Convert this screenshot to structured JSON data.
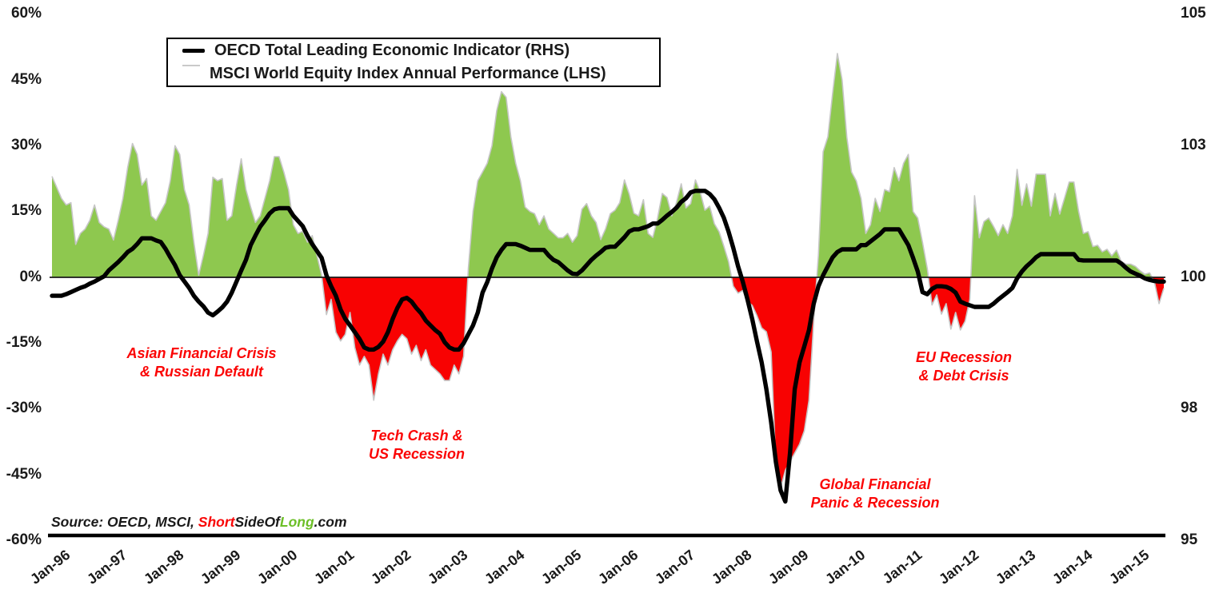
{
  "legend": {
    "items": [
      {
        "label": "OECD Total Leading Economic Indicator (RHS)",
        "swatch": "line",
        "color": "#000000"
      },
      {
        "label": "MSCI World Equity Index Annual Performance (LHS)",
        "swatch": "box",
        "color": "#8ec84f"
      }
    ]
  },
  "axes": {
    "left": {
      "labels": [
        "60%",
        "45%",
        "30%",
        "15%",
        "0%",
        "-15%",
        "-30%",
        "-45%",
        "-60%"
      ]
    },
    "right": {
      "labels": [
        "105",
        "103",
        "100",
        "98",
        "95"
      ]
    },
    "x": {
      "labels": [
        "Jan-96",
        "Jan-97",
        "Jan-98",
        "Jan-99",
        "Jan-00",
        "Jan-01",
        "Jan-02",
        "Jan-03",
        "Jan-04",
        "Jan-05",
        "Jan-06",
        "Jan-07",
        "Jan-08",
        "Jan-09",
        "Jan-10",
        "Jan-11",
        "Jan-12",
        "Jan-13",
        "Jan-14",
        "Jan-15"
      ]
    }
  },
  "annotations": [
    {
      "id": "asian-crisis",
      "line1": "Asian Financial Crisis",
      "line2": "& Russian Default"
    },
    {
      "id": "tech-crash",
      "line1": "Tech Crash &",
      "line2": "US Recession"
    },
    {
      "id": "gfc",
      "line1": "Global Financial",
      "line2": "Panic & Recession"
    },
    {
      "id": "eu-recession",
      "line1": "EU Recession",
      "line2": "& Debt Crisis"
    }
  ],
  "source": {
    "prefix": "Source: OECD, MSCI, ",
    "brand": [
      {
        "text": "Short",
        "color": "#f90505"
      },
      {
        "text": "SideOf",
        "color": "#1a1a1a"
      },
      {
        "text": "Long",
        "color": "#6cbf27"
      },
      {
        "text": ".com",
        "color": "#1a1a1a"
      }
    ]
  },
  "chart_data": {
    "type": "area+line",
    "frequency": "monthly",
    "x_start": "Jan-1996",
    "x_end": "Aug-2015",
    "left_axis_range": [
      -60,
      60
    ],
    "right_axis_range": [
      95,
      105
    ],
    "grid": false,
    "legend_position": "top-left",
    "colors": {
      "area_positive": "#8ec84f",
      "area_negative": "#f80202",
      "area_edge": "#c6c6c6",
      "line": "#000000"
    },
    "series": [
      {
        "name": "MSCI World Equity Index Annual Performance (LHS)",
        "axis": "left",
        "unit": "%",
        "type": "area",
        "values": [
          23,
          20.5,
          18,
          16.5,
          17,
          7.5,
          10,
          11,
          13,
          16.5,
          12.5,
          11.5,
          11,
          8.5,
          13,
          18,
          25,
          30.5,
          28,
          21,
          22.5,
          14,
          13,
          15,
          17,
          22,
          30,
          28,
          20,
          16.5,
          8,
          0.5,
          5,
          10,
          22.8,
          22,
          22.5,
          13,
          14,
          21,
          27,
          20,
          16,
          12.5,
          14,
          18,
          22,
          27.5,
          27.5,
          24,
          20,
          12,
          10,
          10.5,
          8,
          9.5,
          5,
          0.5,
          -8.5,
          -5,
          -12.5,
          -14.5,
          -13,
          -8,
          -16,
          -20,
          -18,
          -20,
          -28,
          -22,
          -17.5,
          -20,
          -16.5,
          -14.5,
          -13,
          -14,
          -17.5,
          -15.5,
          -19,
          -16.5,
          -20,
          -21,
          -22,
          -23.5,
          -23.5,
          -20,
          -22,
          -18,
          2,
          15,
          22,
          24,
          26,
          30,
          38,
          42.3,
          41,
          32,
          26,
          22,
          16,
          15,
          14.5,
          12,
          14,
          11,
          10,
          9,
          9,
          10,
          8,
          9.5,
          15.5,
          16.8,
          14,
          12.5,
          8.6,
          11,
          14.5,
          15.3,
          17,
          22.2,
          19,
          14.6,
          14,
          17.7,
          10,
          9.1,
          13.5,
          19.1,
          18.2,
          14,
          17.1,
          21.3,
          15.8,
          16.8,
          22.2,
          19.5,
          15.3,
          16.2,
          12.2,
          10.4,
          7.1,
          3.6,
          -2,
          -3.6,
          -3,
          -5.5,
          -6.4,
          -8.7,
          -11.5,
          -12.4,
          -17,
          -43,
          -48,
          -44,
          -42,
          -40,
          -38,
          -35,
          -28,
          -10,
          5,
          28.6,
          32,
          42,
          51,
          45,
          32,
          24,
          22,
          18,
          10,
          12,
          18,
          15,
          20,
          19.5,
          25,
          22,
          26,
          28,
          15,
          13.5,
          8,
          2,
          -6.3,
          -4,
          -8.4,
          -6,
          -11.8,
          -8,
          -12,
          -10,
          -5,
          18.6,
          9,
          12.7,
          13.5,
          11.6,
          9.5,
          12,
          10,
          14,
          24.6,
          16.4,
          21.3,
          16.2,
          23.5,
          23.5,
          23.5,
          14,
          19.1,
          14.4,
          18,
          21.7,
          21.7,
          15,
          10,
          10.4,
          7,
          7.3,
          5.8,
          6.4,
          4.9,
          6.2,
          3.6,
          3,
          3,
          2.5,
          1.5,
          0.7,
          1,
          -1,
          -6,
          -2.5
        ]
      },
      {
        "name": "OECD Total Leading Economic Indicator (RHS)",
        "axis": "right",
        "unit": "index",
        "type": "line",
        "values": [
          99.65,
          99.65,
          99.65,
          99.68,
          99.72,
          99.76,
          99.8,
          99.83,
          99.88,
          99.92,
          99.97,
          100.02,
          100.13,
          100.21,
          100.29,
          100.38,
          100.48,
          100.54,
          100.63,
          100.74,
          100.74,
          100.74,
          100.7,
          100.67,
          100.54,
          100.38,
          100.23,
          100.04,
          99.92,
          99.8,
          99.65,
          99.54,
          99.45,
          99.33,
          99.28,
          99.35,
          99.43,
          99.54,
          99.71,
          99.92,
          100.13,
          100.33,
          100.61,
          100.79,
          100.96,
          101.08,
          101.21,
          101.29,
          101.31,
          101.31,
          101.31,
          101.17,
          101.07,
          100.97,
          100.79,
          100.63,
          100.5,
          100.37,
          100.04,
          99.83,
          99.65,
          99.39,
          99.21,
          99.09,
          98.96,
          98.83,
          98.67,
          98.63,
          98.63,
          98.68,
          98.78,
          98.96,
          99.21,
          99.42,
          99.58,
          99.61,
          99.54,
          99.42,
          99.32,
          99.18,
          99.09,
          99.0,
          98.93,
          98.77,
          98.67,
          98.63,
          98.63,
          98.75,
          98.92,
          99.09,
          99.33,
          99.71,
          99.91,
          100.17,
          100.38,
          100.52,
          100.63,
          100.63,
          100.63,
          100.6,
          100.56,
          100.52,
          100.52,
          100.52,
          100.52,
          100.41,
          100.33,
          100.29,
          100.21,
          100.13,
          100.07,
          100.06,
          100.13,
          100.23,
          100.33,
          100.41,
          100.48,
          100.56,
          100.58,
          100.58,
          100.67,
          100.76,
          100.87,
          100.91,
          100.91,
          100.94,
          100.97,
          101.02,
          101.02,
          101.09,
          101.17,
          101.24,
          101.32,
          101.43,
          101.5,
          101.61,
          101.64,
          101.64,
          101.64,
          101.58,
          101.48,
          101.32,
          101.13,
          100.87,
          100.56,
          100.21,
          99.92,
          99.58,
          99.21,
          98.79,
          98.39,
          97.88,
          97.25,
          96.5,
          95.96,
          95.75,
          96.67,
          97.88,
          98.39,
          98.69,
          99.0,
          99.5,
          99.83,
          100.04,
          100.21,
          100.38,
          100.48,
          100.53,
          100.53,
          100.53,
          100.53,
          100.61,
          100.61,
          100.68,
          100.75,
          100.82,
          100.91,
          100.91,
          100.91,
          100.91,
          100.76,
          100.61,
          100.37,
          100.11,
          99.72,
          99.68,
          99.78,
          99.83,
          99.83,
          99.82,
          99.78,
          99.71,
          99.54,
          99.5,
          99.47,
          99.44,
          99.44,
          99.44,
          99.44,
          99.5,
          99.58,
          99.65,
          99.72,
          99.8,
          99.98,
          100.11,
          100.21,
          100.29,
          100.38,
          100.44,
          100.44,
          100.44,
          100.44,
          100.44,
          100.44,
          100.44,
          100.44,
          100.33,
          100.32,
          100.32,
          100.32,
          100.32,
          100.32,
          100.32,
          100.32,
          100.32,
          100.26,
          100.18,
          100.11,
          100.07,
          100.03,
          99.98,
          99.95,
          99.93,
          99.92,
          99.92
        ]
      }
    ]
  }
}
